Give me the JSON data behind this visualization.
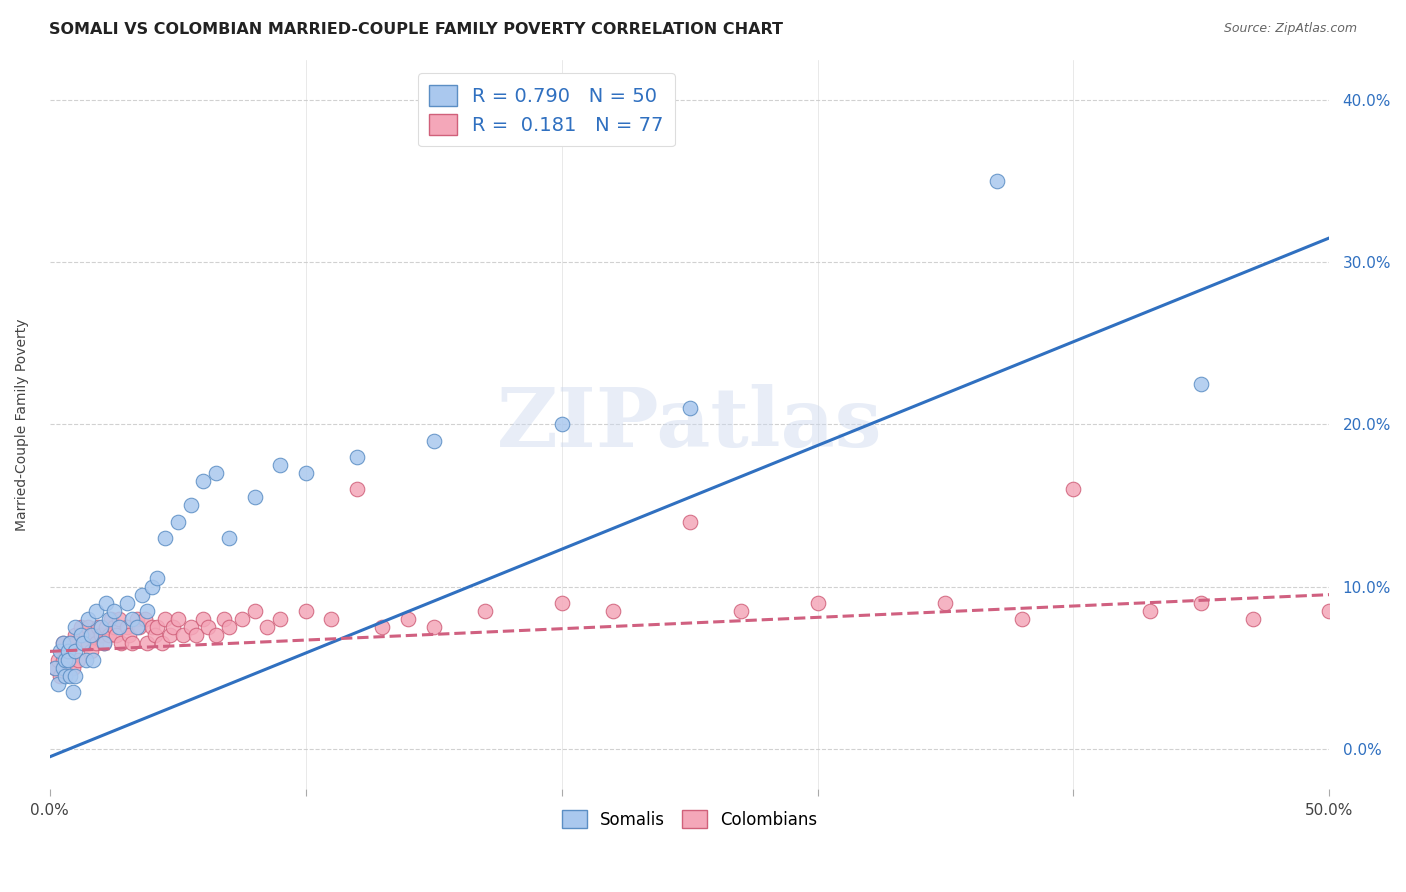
{
  "title": "SOMALI VS COLOMBIAN MARRIED-COUPLE FAMILY POVERTY CORRELATION CHART",
  "source": "Source: ZipAtlas.com",
  "ylabel": "Married-Couple Family Poverty",
  "watermark": "ZIPatlas",
  "xlim": [
    0.0,
    0.5
  ],
  "ylim": [
    -0.025,
    0.425
  ],
  "somali_color": "#aac8ee",
  "somali_edge_color": "#5b8ec4",
  "colombian_color": "#f4a7b9",
  "colombian_edge_color": "#d0607a",
  "trendline_somali_color": "#3070c0",
  "trendline_colombian_color": "#d06080",
  "R_somali": 0.79,
  "N_somali": 50,
  "R_colombian": 0.181,
  "N_colombian": 77,
  "somali_trendline_x": [
    0.0,
    0.5
  ],
  "somali_trendline_y": [
    -0.005,
    0.315
  ],
  "colombian_trendline_x": [
    0.0,
    0.5
  ],
  "colombian_trendline_y": [
    0.06,
    0.095
  ],
  "somali_x": [
    0.002,
    0.003,
    0.004,
    0.005,
    0.005,
    0.006,
    0.006,
    0.007,
    0.007,
    0.008,
    0.008,
    0.009,
    0.01,
    0.01,
    0.01,
    0.012,
    0.013,
    0.014,
    0.015,
    0.016,
    0.017,
    0.018,
    0.02,
    0.021,
    0.022,
    0.023,
    0.025,
    0.027,
    0.03,
    0.032,
    0.034,
    0.036,
    0.038,
    0.04,
    0.042,
    0.045,
    0.05,
    0.055,
    0.06,
    0.065,
    0.07,
    0.08,
    0.09,
    0.1,
    0.12,
    0.15,
    0.2,
    0.25,
    0.37,
    0.45
  ],
  "somali_y": [
    0.05,
    0.04,
    0.06,
    0.05,
    0.065,
    0.055,
    0.045,
    0.06,
    0.055,
    0.045,
    0.065,
    0.035,
    0.075,
    0.06,
    0.045,
    0.07,
    0.065,
    0.055,
    0.08,
    0.07,
    0.055,
    0.085,
    0.075,
    0.065,
    0.09,
    0.08,
    0.085,
    0.075,
    0.09,
    0.08,
    0.075,
    0.095,
    0.085,
    0.1,
    0.105,
    0.13,
    0.14,
    0.15,
    0.165,
    0.17,
    0.13,
    0.155,
    0.175,
    0.17,
    0.18,
    0.19,
    0.2,
    0.21,
    0.35,
    0.225
  ],
  "colombian_x": [
    0.002,
    0.003,
    0.004,
    0.005,
    0.005,
    0.006,
    0.007,
    0.008,
    0.008,
    0.009,
    0.01,
    0.01,
    0.011,
    0.012,
    0.013,
    0.014,
    0.015,
    0.015,
    0.016,
    0.017,
    0.018,
    0.019,
    0.02,
    0.021,
    0.022,
    0.023,
    0.024,
    0.025,
    0.026,
    0.027,
    0.028,
    0.03,
    0.031,
    0.032,
    0.034,
    0.035,
    0.037,
    0.038,
    0.04,
    0.041,
    0.042,
    0.044,
    0.045,
    0.047,
    0.048,
    0.05,
    0.052,
    0.055,
    0.057,
    0.06,
    0.062,
    0.065,
    0.068,
    0.07,
    0.075,
    0.08,
    0.085,
    0.09,
    0.1,
    0.11,
    0.12,
    0.13,
    0.14,
    0.15,
    0.17,
    0.2,
    0.22,
    0.25,
    0.27,
    0.3,
    0.35,
    0.38,
    0.4,
    0.43,
    0.45,
    0.47,
    0.5
  ],
  "colombian_y": [
    0.05,
    0.055,
    0.045,
    0.055,
    0.065,
    0.05,
    0.06,
    0.055,
    0.065,
    0.05,
    0.07,
    0.065,
    0.055,
    0.075,
    0.065,
    0.07,
    0.065,
    0.075,
    0.06,
    0.07,
    0.065,
    0.075,
    0.07,
    0.065,
    0.075,
    0.07,
    0.08,
    0.075,
    0.07,
    0.08,
    0.065,
    0.075,
    0.07,
    0.065,
    0.08,
    0.075,
    0.08,
    0.065,
    0.075,
    0.07,
    0.075,
    0.065,
    0.08,
    0.07,
    0.075,
    0.08,
    0.07,
    0.075,
    0.07,
    0.08,
    0.075,
    0.07,
    0.08,
    0.075,
    0.08,
    0.085,
    0.075,
    0.08,
    0.085,
    0.08,
    0.16,
    0.075,
    0.08,
    0.075,
    0.085,
    0.09,
    0.085,
    0.14,
    0.085,
    0.09,
    0.09,
    0.08,
    0.16,
    0.085,
    0.09,
    0.08,
    0.085
  ],
  "background_color": "#ffffff",
  "grid_color": "#cccccc"
}
